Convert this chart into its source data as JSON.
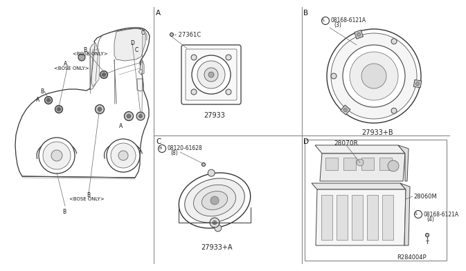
{
  "bg_color": "#ffffff",
  "line_color": "#333333",
  "grid_color": "#999999",
  "panel_A_label": "A",
  "panel_B_label": "B",
  "panel_C_label": "C",
  "panel_D_label": "D",
  "A_screw_label": "27361C",
  "A_part_label": "27933",
  "B_screw_label": "08168-6121A",
  "B_screw_qty": "(3)",
  "B_part_label": "27933+B",
  "C_screw_label": "08120-61628",
  "C_screw_qty": "(8)",
  "C_part_label": "27933+A",
  "D_amp_label": "28070R",
  "D_bracket_label": "28060M",
  "D_screw_label": "08168-6121A",
  "D_screw_qty": "(4)",
  "D_ref_label": "R284004P",
  "car_label_B_top": "B",
  "car_label_B_bose_top": "<BOSE ONLY>",
  "car_label_A": "A",
  "car_label_A_bose": "<BOSE ONLY>",
  "car_label_B_left": "B",
  "car_label_A_left": "A",
  "car_label_A_door": "A",
  "car_label_B_bottom": "B",
  "car_label_B_bose_bottom": "<BOSE ONLY>",
  "car_label_B_rear": "B",
  "car_label_C": "C",
  "car_label_D": "D",
  "car_label_C2": "C"
}
